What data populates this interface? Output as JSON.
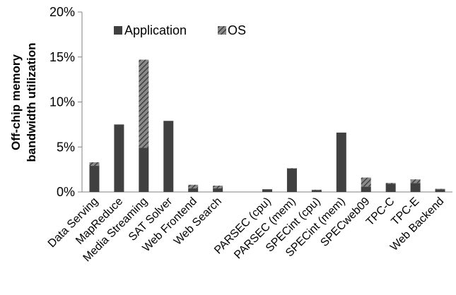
{
  "chart_data": {
    "type": "bar",
    "stacked": true,
    "categories": [
      "Data Serving",
      "MapReduce",
      "Media Streaming",
      "SAT Solver",
      "Web Frontend",
      "Web Search",
      "",
      "PARSEC (cpu)",
      "PARSEC (mem)",
      "SPECint (cpu)",
      "SPECint (mem)",
      "SPECweb09",
      "TPC-C",
      "TPC-E",
      "Web Backend"
    ],
    "series": [
      {
        "name": "Application",
        "color": "#404040",
        "pattern": "solid",
        "values": [
          2.9,
          7.5,
          4.9,
          7.9,
          0.4,
          0.4,
          0,
          0.3,
          2.6,
          0.2,
          6.6,
          0.6,
          0.9,
          1.0,
          0.3
        ]
      },
      {
        "name": "OS",
        "color": "#404040",
        "pattern": "hatched",
        "values": [
          0.4,
          0,
          9.8,
          0,
          0.4,
          0.3,
          0,
          0,
          0.05,
          0.05,
          0,
          1.0,
          0.1,
          0.4,
          0.05
        ]
      }
    ],
    "yticks": [
      "0%",
      "5%",
      "10%",
      "15%",
      "20%"
    ],
    "ylim": [
      0,
      20
    ],
    "ylabel_line1": "Off-chip memory",
    "ylabel_line2": "bandwidth utilization",
    "legend_position": "top-left",
    "grid": false
  }
}
